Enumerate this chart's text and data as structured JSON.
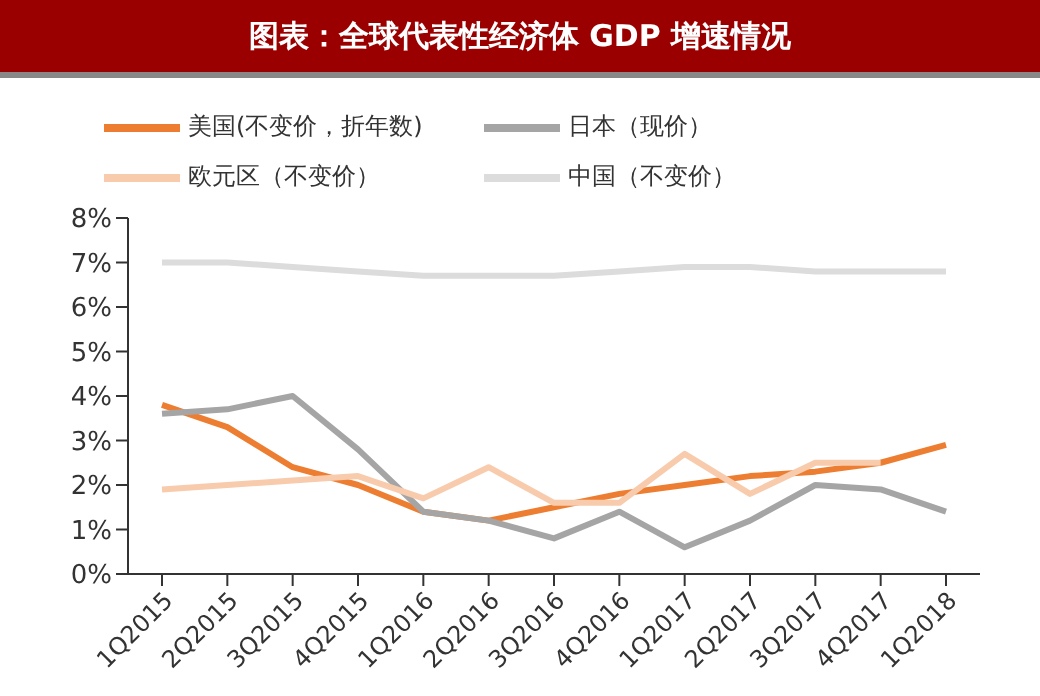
{
  "chart_data": {
    "type": "line",
    "title": "图表：全球代表性经济体 GDP 增速情况",
    "categories": [
      "1Q2015",
      "2Q2015",
      "3Q2015",
      "4Q2015",
      "1Q2016",
      "2Q2016",
      "3Q2016",
      "4Q2016",
      "1Q2017",
      "2Q2017",
      "3Q2017",
      "4Q2017",
      "1Q2018"
    ],
    "series": [
      {
        "name": "美国(不变价，折年数)",
        "color": "#ed7d31",
        "values": [
          3.8,
          3.3,
          2.4,
          2.0,
          1.4,
          1.2,
          1.5,
          1.8,
          2.0,
          2.2,
          2.3,
          2.5,
          2.9
        ]
      },
      {
        "name": "日本（现价）",
        "color": "#a5a5a5",
        "values": [
          3.6,
          3.7,
          4.0,
          2.8,
          1.4,
          1.2,
          0.8,
          1.4,
          0.6,
          1.2,
          2.0,
          1.9,
          1.4
        ]
      },
      {
        "name": "欧元区（不变价）",
        "color": "#f8cbad",
        "values": [
          1.9,
          2.0,
          2.1,
          2.2,
          1.7,
          2.4,
          1.6,
          1.6,
          2.7,
          1.8,
          2.5,
          2.5,
          null
        ]
      },
      {
        "name": "中国（不变价）",
        "color": "#dcdcdc",
        "values": [
          7.0,
          7.0,
          6.9,
          6.8,
          6.7,
          6.7,
          6.7,
          6.8,
          6.9,
          6.9,
          6.8,
          6.8,
          6.8
        ]
      }
    ],
    "ylim": [
      0,
      8
    ],
    "yticks": [
      {
        "value": 0,
        "label": "0%"
      },
      {
        "value": 1,
        "label": "1%"
      },
      {
        "value": 2,
        "label": "2%"
      },
      {
        "value": 3,
        "label": "3%"
      },
      {
        "value": 4,
        "label": "4%"
      },
      {
        "value": 5,
        "label": "5%"
      },
      {
        "value": 6,
        "label": "6%"
      },
      {
        "value": 7,
        "label": "7%"
      },
      {
        "value": 8,
        "label": "8%"
      }
    ],
    "grid": false,
    "legend": "top",
    "marker": "none",
    "line_style": "solid"
  }
}
